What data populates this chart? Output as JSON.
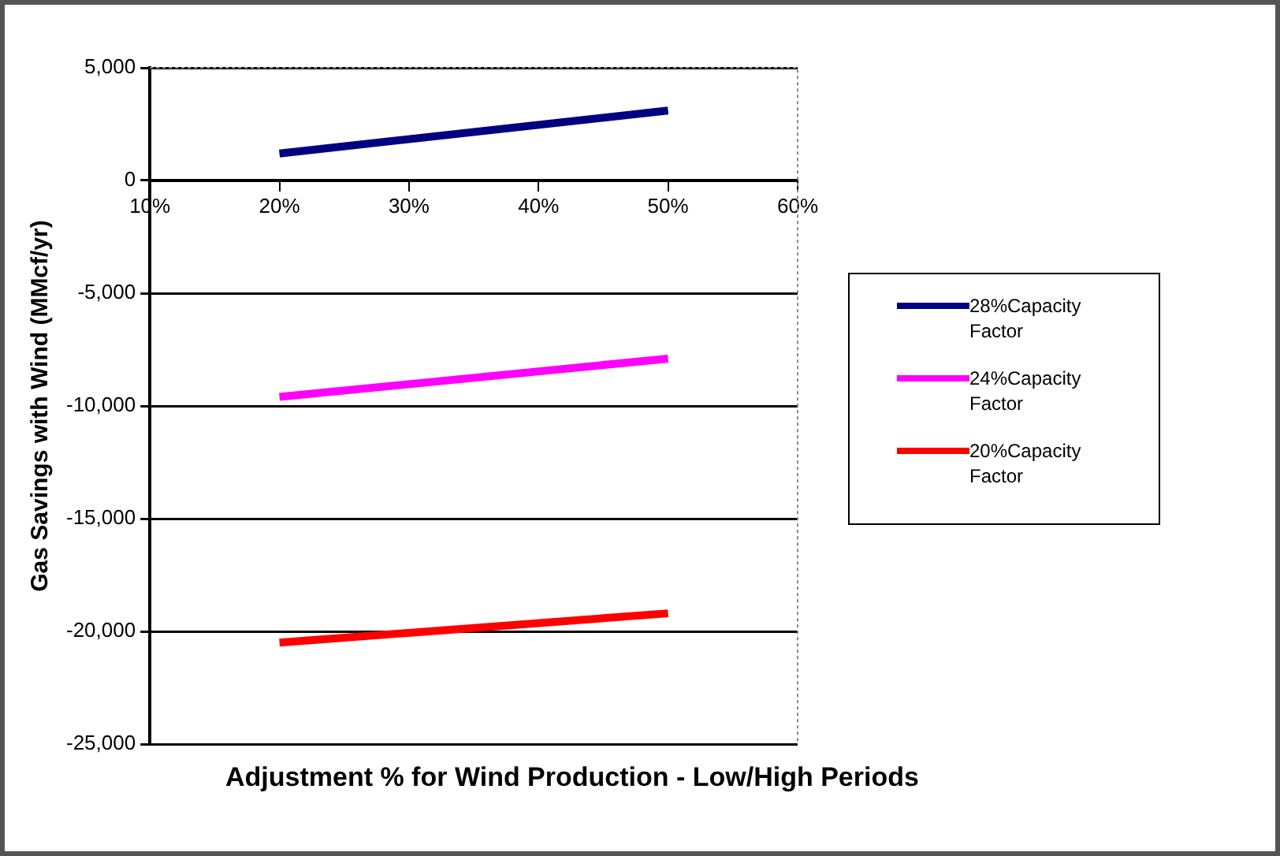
{
  "chart_data": {
    "type": "line",
    "xlabel": "Adjustment % for Wind Production - Low/High Periods",
    "ylabel": "Gas Savings with Wind (MMcf/yr)",
    "x": [
      20,
      50
    ],
    "series": [
      {
        "name": "28%Capacity Factor",
        "color": "#000080",
        "values": [
          1200,
          3100
        ]
      },
      {
        "name": "24%Capacity Factor",
        "color": "#ff00ff",
        "values": [
          -9600,
          -7900
        ]
      },
      {
        "name": "20%Capacity Factor",
        "color": "#ff0000",
        "values": [
          -20500,
          -19200
        ]
      }
    ],
    "xlim": [
      10,
      60
    ],
    "xticks": [
      {
        "value": 10,
        "label": "10%"
      },
      {
        "value": 20,
        "label": "20%"
      },
      {
        "value": 30,
        "label": "30%"
      },
      {
        "value": 40,
        "label": "40%"
      },
      {
        "value": 50,
        "label": "50%"
      },
      {
        "value": 60,
        "label": "60%"
      }
    ],
    "ylim": [
      -25000,
      5000
    ],
    "yticks": [
      {
        "value": -25000,
        "label": "-25,000"
      },
      {
        "value": -20000,
        "label": "-20,000"
      },
      {
        "value": -15000,
        "label": "-15,000"
      },
      {
        "value": -10000,
        "label": "-10,000"
      },
      {
        "value": -5000,
        "label": "-5,000"
      },
      0,
      {
        "value": 5000,
        "label": "5,000"
      }
    ],
    "grid": "y",
    "legend": "right",
    "marker": "none",
    "line_style": "solid"
  }
}
